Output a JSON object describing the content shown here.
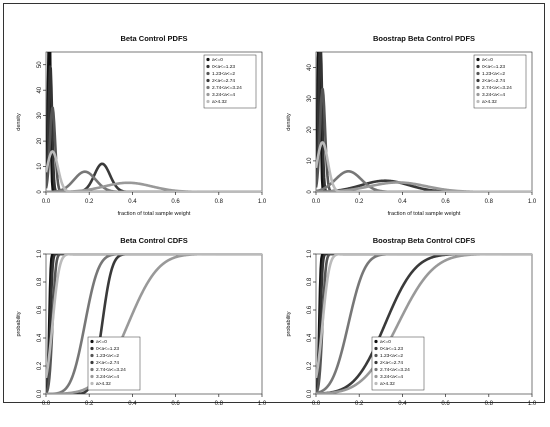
{
  "chart_data": [
    {
      "type": "line",
      "title": "Beta Control PDFS",
      "xlabel": "fraction of total sample weight",
      "ylabel": "density",
      "xlim": [
        0,
        1.0
      ],
      "ylim": [
        0,
        55
      ],
      "xticks": [
        "0.0",
        "0.2",
        "0.4",
        "0.6",
        "0.8",
        "1.0"
      ],
      "yticks": [
        "0",
        "10",
        "20",
        "30",
        "40",
        "50"
      ],
      "legend_position": "top-right",
      "series": [
        {
          "name": "a<=0",
          "color": "#111111",
          "kind": "pdf",
          "mean": 0.015,
          "sd": 0.0055
        },
        {
          "name": "0<a<=1.23",
          "color": "#333333",
          "kind": "pdf",
          "mean": 0.02,
          "sd": 0.008
        },
        {
          "name": "1.23<a<=2",
          "color": "#555555",
          "kind": "pdf",
          "mean": 0.03,
          "sd": 0.012
        },
        {
          "name": "2<a<=2.74",
          "color": "#3a3a3a",
          "kind": "pdf",
          "mean": 0.26,
          "sd": 0.036
        },
        {
          "name": "2.74<a<=3.24",
          "color": "#777777",
          "kind": "pdf",
          "mean": 0.18,
          "sd": 0.05
        },
        {
          "name": "3.24<a<=4",
          "color": "#999999",
          "kind": "pdf",
          "mean": 0.38,
          "sd": 0.11
        },
        {
          "name": "a>4.32",
          "color": "#bbbbbb",
          "kind": "pdf",
          "mean": 0.03,
          "sd": 0.025
        }
      ]
    },
    {
      "type": "line",
      "title": "Boostrap Beta Control PDFS",
      "xlabel": "fraction of total sample weight",
      "ylabel": "density",
      "xlim": [
        0,
        1.0
      ],
      "ylim": [
        0,
        45
      ],
      "xticks": [
        "0.0",
        "0.2",
        "0.4",
        "0.6",
        "0.8",
        "1.0"
      ],
      "yticks": [
        "0",
        "10",
        "20",
        "30",
        "40"
      ],
      "legend_position": "top-right",
      "series": [
        {
          "name": "a<=0",
          "color": "#111111",
          "kind": "pdf",
          "mean": 0.015,
          "sd": 0.0055
        },
        {
          "name": "0<a<=1.23",
          "color": "#333333",
          "kind": "pdf",
          "mean": 0.02,
          "sd": 0.008
        },
        {
          "name": "1.23<a<=2",
          "color": "#555555",
          "kind": "pdf",
          "mean": 0.03,
          "sd": 0.012
        },
        {
          "name": "2<a<=2.74",
          "color": "#3a3a3a",
          "kind": "pdf",
          "mean": 0.32,
          "sd": 0.11
        },
        {
          "name": "2.74<a<=3.24",
          "color": "#777777",
          "kind": "pdf",
          "mean": 0.15,
          "sd": 0.06
        },
        {
          "name": "3.24<a<=4",
          "color": "#999999",
          "kind": "pdf",
          "mean": 0.38,
          "sd": 0.13
        },
        {
          "name": "a>4.32",
          "color": "#bbbbbb",
          "kind": "pdf",
          "mean": 0.03,
          "sd": 0.025
        }
      ]
    },
    {
      "type": "line",
      "title": "Beta Control CDFS",
      "xlabel": "",
      "ylabel": "probability",
      "xlim": [
        0,
        1.0
      ],
      "ylim": [
        0,
        1.0
      ],
      "xticks": [
        "0.0",
        "0.2",
        "0.4",
        "0.6",
        "0.8",
        "1.0"
      ],
      "yticks": [
        "0.0",
        "0.2",
        "0.4",
        "0.6",
        "0.8",
        "1.0"
      ],
      "legend_position": "bottom-right",
      "series": [
        {
          "name": "a<=0",
          "color": "#111111",
          "kind": "cdf",
          "mean": 0.015,
          "sd": 0.0055
        },
        {
          "name": "0<a<=1.23",
          "color": "#333333",
          "kind": "cdf",
          "mean": 0.02,
          "sd": 0.008
        },
        {
          "name": "1.23<a<=2",
          "color": "#555555",
          "kind": "cdf",
          "mean": 0.03,
          "sd": 0.012
        },
        {
          "name": "2<a<=2.74",
          "color": "#3a3a3a",
          "kind": "cdf",
          "mean": 0.26,
          "sd": 0.036
        },
        {
          "name": "2.74<a<=3.24",
          "color": "#777777",
          "kind": "cdf",
          "mean": 0.18,
          "sd": 0.05
        },
        {
          "name": "3.24<a<=4",
          "color": "#999999",
          "kind": "cdf",
          "mean": 0.38,
          "sd": 0.11
        },
        {
          "name": "a>4.32",
          "color": "#bbbbbb",
          "kind": "cdf",
          "mean": 0.03,
          "sd": 0.025
        }
      ]
    },
    {
      "type": "line",
      "title": "Boostrap Beta Control CDFS",
      "xlabel": "",
      "ylabel": "probability",
      "xlim": [
        0,
        1.0
      ],
      "ylim": [
        0,
        1.0
      ],
      "xticks": [
        "0.0",
        "0.2",
        "0.4",
        "0.6",
        "0.8",
        "1.0"
      ],
      "yticks": [
        "0.0",
        "0.2",
        "0.4",
        "0.6",
        "0.8",
        "1.0"
      ],
      "legend_position": "bottom-right",
      "series": [
        {
          "name": "a<=0",
          "color": "#111111",
          "kind": "cdf",
          "mean": 0.015,
          "sd": 0.0055
        },
        {
          "name": "0<a<=1.23",
          "color": "#333333",
          "kind": "cdf",
          "mean": 0.02,
          "sd": 0.008
        },
        {
          "name": "1.23<a<=2",
          "color": "#555555",
          "kind": "cdf",
          "mean": 0.03,
          "sd": 0.012
        },
        {
          "name": "2<a<=2.74",
          "color": "#3a3a3a",
          "kind": "cdf",
          "mean": 0.32,
          "sd": 0.11
        },
        {
          "name": "2.74<a<=3.24",
          "color": "#777777",
          "kind": "cdf",
          "mean": 0.15,
          "sd": 0.06
        },
        {
          "name": "3.24<a<=4",
          "color": "#999999",
          "kind": "cdf",
          "mean": 0.38,
          "sd": 0.13
        },
        {
          "name": "a>4.32",
          "color": "#bbbbbb",
          "kind": "cdf",
          "mean": 0.03,
          "sd": 0.025
        }
      ]
    }
  ]
}
